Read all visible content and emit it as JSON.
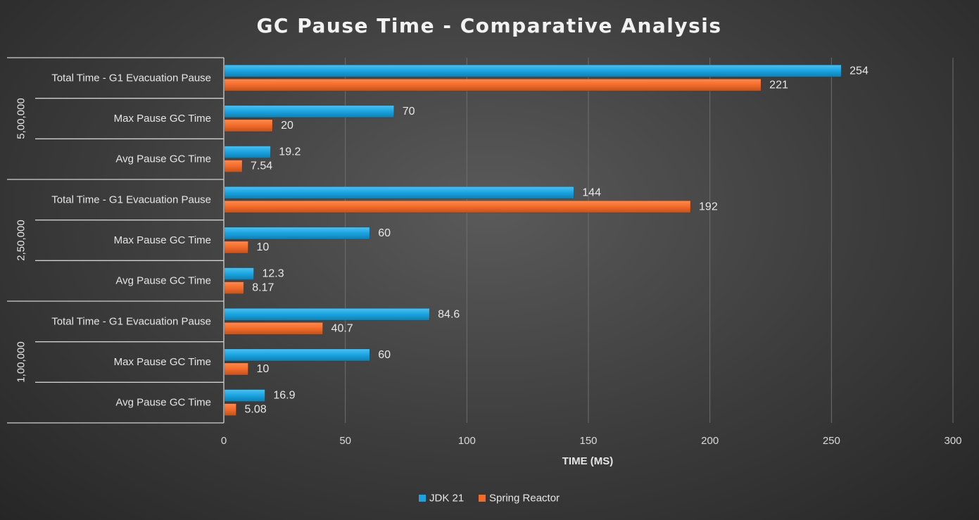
{
  "chart_data": {
    "type": "bar",
    "orientation": "horizontal",
    "title": "GC Pause Time - Comparative Analysis",
    "xlabel": "TIME (MS)",
    "ylabel": "",
    "xlim": [
      0,
      300
    ],
    "xticks": [
      "0",
      "50",
      "100",
      "150",
      "200",
      "250",
      "300"
    ],
    "grid": true,
    "legend_position": "bottom",
    "groups": [
      {
        "name": "5,00,000",
        "categories": [
          "Total Time - G1 Evacuation Pause",
          "Max Pause GC Time",
          "Avg Pause GC Time"
        ]
      },
      {
        "name": "2,50,000",
        "categories": [
          "Total Time - G1 Evacuation Pause",
          "Max Pause GC Time",
          "Avg Pause GC Time"
        ]
      },
      {
        "name": "1,00,000",
        "categories": [
          "Total Time - G1 Evacuation Pause",
          "Max Pause GC Time",
          "Avg Pause GC Time"
        ]
      }
    ],
    "series": [
      {
        "name": "JDK 21",
        "color": "#1aa3e0",
        "values": [
          254,
          70,
          19.2,
          144,
          60,
          12.3,
          84.6,
          60,
          16.9
        ],
        "labels": [
          "254",
          "70",
          "19.2",
          "144",
          "60",
          "12.3",
          "84.6",
          "60",
          "16.9"
        ]
      },
      {
        "name": "Spring Reactor",
        "color": "#f26b2a",
        "values": [
          221,
          20,
          7.54,
          192,
          10,
          8.17,
          40.7,
          10,
          5.08
        ],
        "labels": [
          "221",
          "20",
          "7.54",
          "192",
          "10",
          "8.17",
          "40.7",
          "10",
          "5.08"
        ]
      }
    ]
  }
}
